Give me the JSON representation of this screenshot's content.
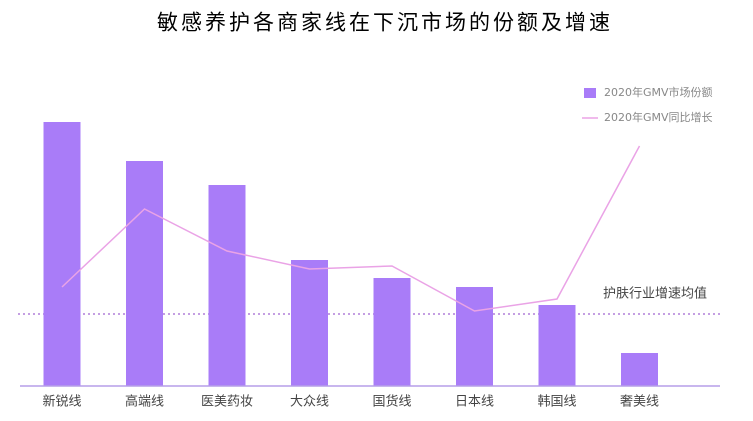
{
  "chart_data": {
    "type": "bar-line",
    "title": "敏感养护各商家线在下沉市场的份额及增速",
    "categories": [
      "新锐线",
      "高端线",
      "医美药妆",
      "大众线",
      "国货线",
      "日本线",
      "韩国线",
      "奢美线"
    ],
    "series": [
      {
        "name": "2020年GMV市场份额",
        "type": "bar",
        "color": "#a97cf8",
        "values": [
          88,
          75,
          67,
          42,
          36,
          33,
          27,
          11
        ]
      },
      {
        "name": "2020年GMV同比增长",
        "type": "line",
        "axis": "y2",
        "color": "#eaa3e6",
        "values": [
          33,
          59,
          45,
          39,
          40,
          25,
          29,
          80
        ]
      }
    ],
    "ylim": [
      0,
      100
    ],
    "y2lim": [
      0,
      100
    ],
    "reference_line": {
      "value": 24,
      "label": "护肤行业增速均值",
      "color": "#b07fd8"
    }
  }
}
